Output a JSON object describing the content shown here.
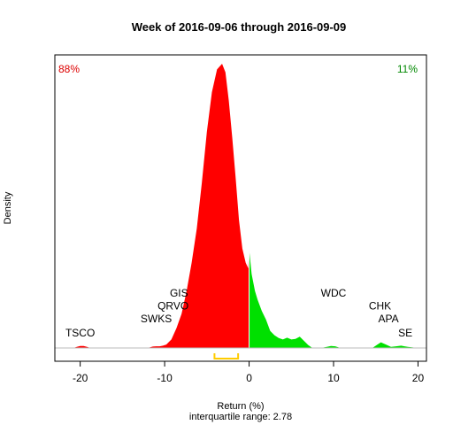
{
  "chart_data": {
    "type": "area",
    "title": "Week of 2016-09-06 through 2016-09-09",
    "xlabel": "Return (%)",
    "ylabel": "Density",
    "subtitle": "interquartile range: 2.78",
    "xlim": [
      -23,
      21
    ],
    "ylim": [
      0,
      1
    ],
    "x_ticks": [
      -20,
      -10,
      0,
      10,
      20
    ],
    "x_tick_labels": [
      "-20",
      "-10",
      "0",
      "10",
      "20"
    ],
    "split_at": 0,
    "pct_negative": "88%",
    "pct_positive": "11%",
    "colors": {
      "negative": "#ff0000",
      "positive": "#00e000",
      "negative_label": "#dd0000",
      "positive_label": "#008800",
      "iqr_bracket": "#ffcc00",
      "baseline": "#bbbbbb"
    },
    "iqr": [
      -4.1,
      -1.3
    ],
    "density": {
      "x": [
        -20.8,
        -20.4,
        -20.0,
        -19.6,
        -19.2,
        -18.8,
        -12.0,
        -11.4,
        -11.0,
        -10.6,
        -10.2,
        -9.8,
        -9.2,
        -8.6,
        -8.0,
        -7.4,
        -6.8,
        -6.2,
        -5.6,
        -5.0,
        -4.4,
        -3.8,
        -3.2,
        -2.8,
        -2.4,
        -2.0,
        -1.6,
        -1.2,
        -0.8,
        -0.4,
        -0.1,
        0.0,
        0.3,
        0.7,
        1.0,
        1.5,
        2.0,
        2.5,
        3.0,
        3.5,
        4.0,
        4.5,
        5.0,
        5.5,
        6.0,
        6.5,
        7.0,
        7.5,
        8.5,
        9.2,
        9.7,
        10.2,
        10.8,
        14.6,
        15.2,
        15.6,
        16.2,
        16.8,
        17.4,
        18.0,
        18.4,
        18.8,
        19.4,
        19.8
      ],
      "y": [
        0,
        0.004,
        0.007,
        0.007,
        0.004,
        0,
        0,
        0.005,
        0.006,
        0.006,
        0.008,
        0.012,
        0.03,
        0.07,
        0.12,
        0.2,
        0.3,
        0.42,
        0.58,
        0.76,
        0.9,
        0.98,
        1.0,
        0.97,
        0.87,
        0.74,
        0.6,
        0.45,
        0.35,
        0.3,
        0.28,
        0.35,
        0.26,
        0.2,
        0.17,
        0.13,
        0.1,
        0.06,
        0.045,
        0.035,
        0.03,
        0.036,
        0.03,
        0.032,
        0.04,
        0.025,
        0.01,
        0,
        0,
        0.004,
        0.007,
        0.006,
        0,
        0,
        0.012,
        0.02,
        0.012,
        0.004,
        0.006,
        0.008,
        0.006,
        0.004,
        0.002,
        0
      ]
    },
    "annotations": [
      {
        "text": "TSCO",
        "x": -20.0,
        "y": 0.04
      },
      {
        "text": "SWKS",
        "x": -11.0,
        "y": 0.09
      },
      {
        "text": "QRVO",
        "x": -9.0,
        "y": 0.135
      },
      {
        "text": "GIS",
        "x": -8.3,
        "y": 0.18
      },
      {
        "text": "WDC",
        "x": 10.0,
        "y": 0.18
      },
      {
        "text": "CHK",
        "x": 15.5,
        "y": 0.135
      },
      {
        "text": "APA",
        "x": 16.5,
        "y": 0.09
      },
      {
        "text": "SE",
        "x": 18.5,
        "y": 0.04
      }
    ]
  }
}
